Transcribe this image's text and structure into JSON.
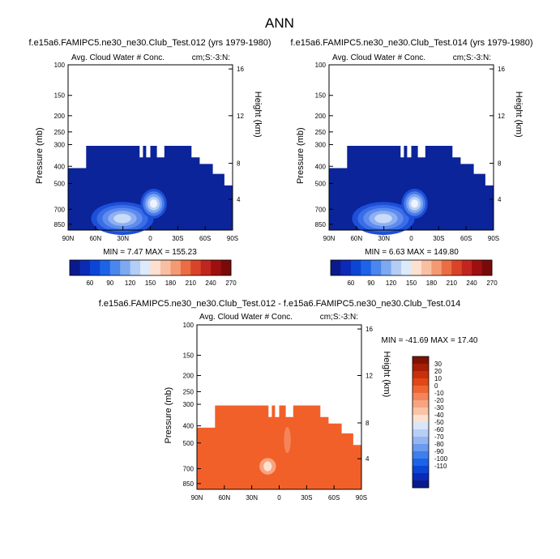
{
  "page_title": "ANN",
  "colors": {
    "fill_blue": "#0b249a",
    "fill_orange": "#f2602a",
    "frame": "#000000",
    "abs_colorbar": [
      "#0a1a8c",
      "#0b2ab5",
      "#0c45d6",
      "#1d63e8",
      "#4a86ec",
      "#7ca9f0",
      "#b4cdf5",
      "#ddeafa",
      "#fde0cf",
      "#f9bfa2",
      "#f39a73",
      "#ea6d44",
      "#d8432a",
      "#c0261d",
      "#9e1010",
      "#7a0a0a"
    ],
    "diff_colorbar": [
      "#0a1a8c",
      "#0b2ab5",
      "#0c45d6",
      "#1d63e8",
      "#3f7fec",
      "#6a9bef",
      "#93b6f2",
      "#b8cff5",
      "#d9e6fa",
      "#fde1cf",
      "#fbc3a6",
      "#f8a47f",
      "#f4855a",
      "#ef6633",
      "#e04815",
      "#c8310b",
      "#a51e05",
      "#7f1203"
    ]
  },
  "chart_data": [
    {
      "type": "heatmap",
      "title": "f.e15a6.FAMIPC5.ne30_ne30.Club_Test.012 (yrs 1979-1980)",
      "subtitle_left": "Avg. Cloud Water # Conc.",
      "subtitle_right": "cm;S:-3:N:",
      "ylabel": "Pressure (mb)",
      "ylabel_right": "Height (km)",
      "x_ticks": [
        "90N",
        "60N",
        "30N",
        "0",
        "30S",
        "60S",
        "90S"
      ],
      "y_ticks": [
        "100",
        "150",
        "200",
        "250",
        "300",
        "400",
        "500",
        "700",
        "850"
      ],
      "y_ticks_right": [
        "16",
        "12",
        "8",
        "4"
      ],
      "stats": "MIN =  7.47  MAX = 155.23",
      "min": 7.47,
      "max": 155.23,
      "colorbar_labels": [
        "60",
        "90",
        "120",
        "150",
        "180",
        "210",
        "240",
        "270"
      ]
    },
    {
      "type": "heatmap",
      "title": "f.e15a6.FAMIPC5.ne30_ne30.Club_Test.014 (yrs 1979-1980)",
      "subtitle_left": "Avg. Cloud Water # Conc.",
      "subtitle_right": "cm;S:-3:N:",
      "ylabel": "Pressure (mb)",
      "ylabel_right": "Height (km)",
      "x_ticks": [
        "90N",
        "60N",
        "30N",
        "0",
        "30S",
        "60S",
        "90S"
      ],
      "y_ticks": [
        "100",
        "150",
        "200",
        "250",
        "300",
        "400",
        "500",
        "700",
        "850"
      ],
      "y_ticks_right": [
        "16",
        "12",
        "8",
        "4"
      ],
      "stats": "MIN =  6.63  MAX = 149.80",
      "min": 6.63,
      "max": 149.8,
      "colorbar_labels": [
        "60",
        "90",
        "120",
        "150",
        "180",
        "210",
        "240",
        "270"
      ]
    },
    {
      "type": "heatmap",
      "title": "f.e15a6.FAMIPC5.ne30_ne30.Club_Test.012 - f.e15a6.FAMIPC5.ne30_ne30.Club_Test.014",
      "subtitle_left": "Avg. Cloud Water # Conc.",
      "subtitle_right": "cm;S:-3:N:",
      "ylabel": "Pressure (mb)",
      "ylabel_right": "Height (km)",
      "x_ticks": [
        "90N",
        "60N",
        "30N",
        "0",
        "30S",
        "60S",
        "90S"
      ],
      "y_ticks": [
        "100",
        "150",
        "200",
        "250",
        "300",
        "400",
        "500",
        "700",
        "850"
      ],
      "y_ticks_right": [
        "16",
        "12",
        "8",
        "4"
      ],
      "stats": "MIN = -41.69  MAX =  17.40",
      "min": -41.69,
      "max": 17.4,
      "colorbar_labels": [
        "30",
        "20",
        "10",
        "0",
        "-10",
        "-20",
        "-30",
        "-40",
        "-50",
        "-60",
        "-70",
        "-80",
        "-90",
        "-100",
        "-110"
      ]
    }
  ]
}
